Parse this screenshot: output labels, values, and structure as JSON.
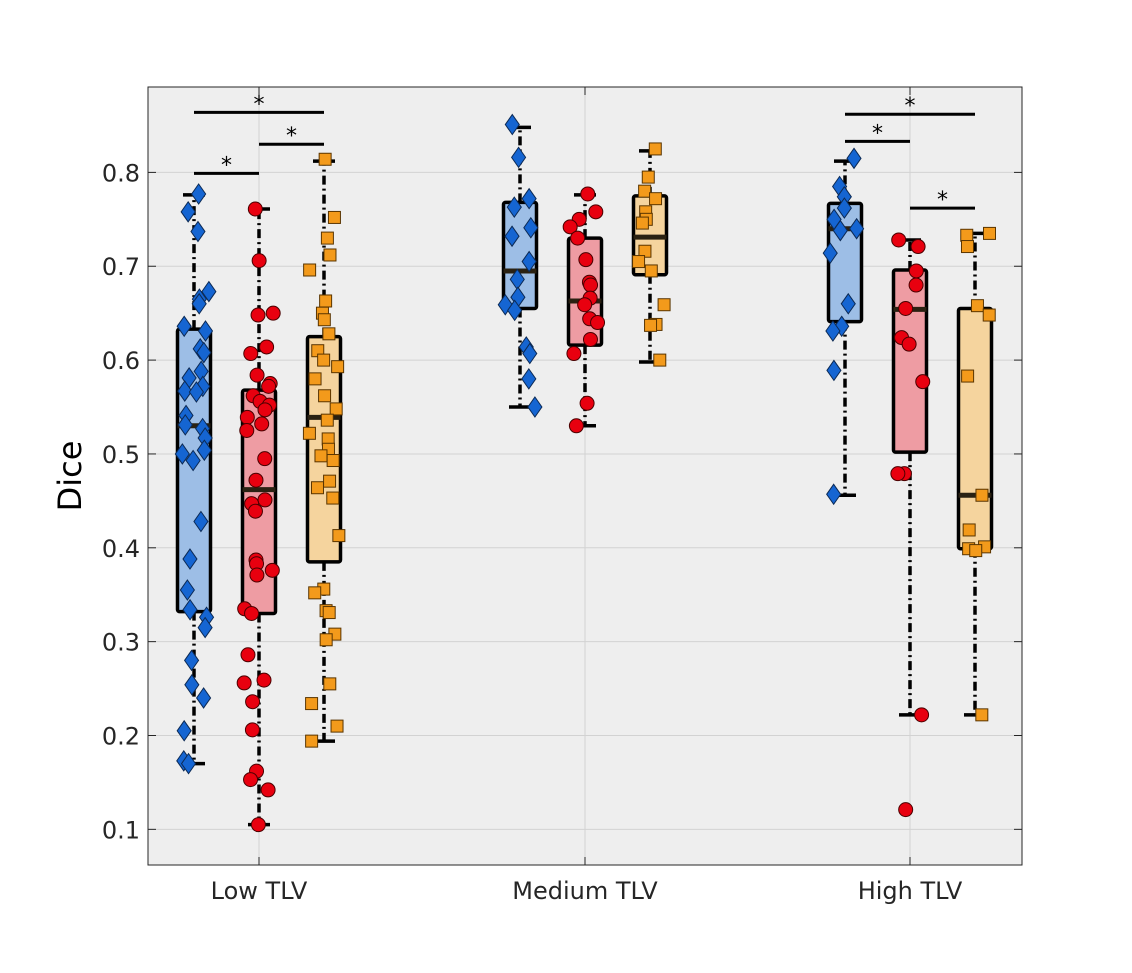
{
  "chart_data": {
    "type": "box",
    "title": "",
    "xlabel": "",
    "ylabel": "Dice",
    "ylim": [
      0.062,
      0.891
    ],
    "grid": true,
    "categories": [
      "Low TLV",
      "Medium TLV",
      "High TLV"
    ],
    "yticks": [
      "0.1",
      "0.2",
      "0.3",
      "0.4",
      "0.5",
      "0.6",
      "0.7",
      "0.8"
    ],
    "colors": {
      "background": "#eeeeee",
      "grid": "#d2d2d2",
      "series": [
        {
          "box": "#9dbee6",
          "marker": "#1565d2"
        },
        {
          "box": "#ee9ca3",
          "marker": "#e8000f"
        },
        {
          "box": "#f5d49e",
          "marker": "#f39a1b"
        }
      ]
    },
    "markers": [
      "diamond",
      "circle",
      "square"
    ],
    "groups": [
      {
        "category": "Low TLV",
        "boxes": [
          {
            "whisker_low": 0.17,
            "q1": 0.332,
            "median": 0.53,
            "q3": 0.633,
            "whisker_high": 0.776,
            "points": [
              0.777,
              0.758,
              0.737,
              0.673,
              0.665,
              0.66,
              0.636,
              0.631,
              0.612,
              0.608,
              0.588,
              0.581,
              0.572,
              0.567,
              0.566,
              0.541,
              0.531,
              0.527,
              0.517,
              0.504,
              0.5,
              0.493,
              0.428,
              0.388,
              0.355,
              0.334,
              0.326,
              0.315,
              0.28,
              0.254,
              0.24,
              0.205,
              0.173,
              0.17
            ]
          },
          {
            "whisker_low": 0.105,
            "q1": 0.33,
            "median": 0.462,
            "q3": 0.568,
            "whisker_high": 0.761,
            "points": [
              0.761,
              0.706,
              0.65,
              0.648,
              0.614,
              0.607,
              0.584,
              0.575,
              0.572,
              0.562,
              0.556,
              0.552,
              0.547,
              0.539,
              0.532,
              0.525,
              0.495,
              0.472,
              0.451,
              0.447,
              0.439,
              0.387,
              0.383,
              0.376,
              0.371,
              0.335,
              0.33,
              0.286,
              0.259,
              0.256,
              0.236,
              0.206,
              0.162,
              0.153,
              0.142,
              0.105
            ]
          },
          {
            "whisker_low": 0.194,
            "q1": 0.385,
            "median": 0.539,
            "q3": 0.625,
            "whisker_high": 0.812,
            "points": [
              0.814,
              0.752,
              0.73,
              0.712,
              0.696,
              0.663,
              0.65,
              0.643,
              0.628,
              0.61,
              0.6,
              0.593,
              0.58,
              0.562,
              0.548,
              0.536,
              0.522,
              0.516,
              0.505,
              0.498,
              0.493,
              0.471,
              0.464,
              0.453,
              0.413,
              0.356,
              0.352,
              0.333,
              0.331,
              0.308,
              0.302,
              0.255,
              0.234,
              0.21,
              0.194
            ]
          }
        ],
        "significance": [
          {
            "from": 0,
            "to": 1,
            "level": 0.799,
            "label": "*"
          },
          {
            "from": 0,
            "to": 2,
            "level": 0.864,
            "label": "*"
          },
          {
            "from": 1,
            "to": 2,
            "level": 0.83,
            "label": "*"
          }
        ]
      },
      {
        "category": "Medium TLV",
        "boxes": [
          {
            "whisker_low": 0.55,
            "q1": 0.655,
            "median": 0.695,
            "q3": 0.768,
            "whisker_high": 0.848,
            "points": [
              0.851,
              0.816,
              0.772,
              0.763,
              0.741,
              0.732,
              0.705,
              0.686,
              0.667,
              0.659,
              0.653,
              0.614,
              0.607,
              0.58,
              0.55
            ]
          },
          {
            "whisker_low": 0.53,
            "q1": 0.616,
            "median": 0.663,
            "q3": 0.73,
            "whisker_high": 0.776,
            "points": [
              0.777,
              0.758,
              0.75,
              0.742,
              0.73,
              0.707,
              0.683,
              0.68,
              0.666,
              0.659,
              0.644,
              0.64,
              0.622,
              0.607,
              0.554,
              0.53
            ]
          },
          {
            "whisker_low": 0.598,
            "q1": 0.691,
            "median": 0.731,
            "q3": 0.775,
            "whisker_high": 0.823,
            "points": [
              0.825,
              0.795,
              0.78,
              0.772,
              0.758,
              0.75,
              0.746,
              0.716,
              0.705,
              0.695,
              0.659,
              0.638,
              0.637,
              0.6
            ]
          }
        ],
        "significance": []
      },
      {
        "category": "High TLV",
        "boxes": [
          {
            "whisker_low": 0.456,
            "q1": 0.641,
            "median": 0.74,
            "q3": 0.767,
            "whisker_high": 0.812,
            "points": [
              0.815,
              0.785,
              0.774,
              0.762,
              0.75,
              0.74,
              0.738,
              0.714,
              0.66,
              0.636,
              0.631,
              0.589,
              0.457
            ]
          },
          {
            "whisker_low": 0.222,
            "q1": 0.502,
            "median": 0.654,
            "q3": 0.696,
            "whisker_high": 0.728,
            "points": [
              0.728,
              0.721,
              0.695,
              0.68,
              0.655,
              0.624,
              0.617,
              0.577,
              0.479,
              0.479,
              0.222,
              0.121
            ]
          },
          {
            "whisker_low": 0.222,
            "q1": 0.399,
            "median": 0.456,
            "q3": 0.655,
            "whisker_high": 0.735,
            "points": [
              0.735,
              0.733,
              0.721,
              0.658,
              0.648,
              0.583,
              0.456,
              0.419,
              0.401,
              0.399,
              0.397,
              0.222
            ]
          }
        ],
        "significance": [
          {
            "from": 0,
            "to": 1,
            "level": 0.833,
            "label": "*"
          },
          {
            "from": 0,
            "to": 2,
            "level": 0.862,
            "label": "*"
          },
          {
            "from": 1,
            "to": 2,
            "level": 0.762,
            "label": "*"
          }
        ]
      }
    ]
  }
}
